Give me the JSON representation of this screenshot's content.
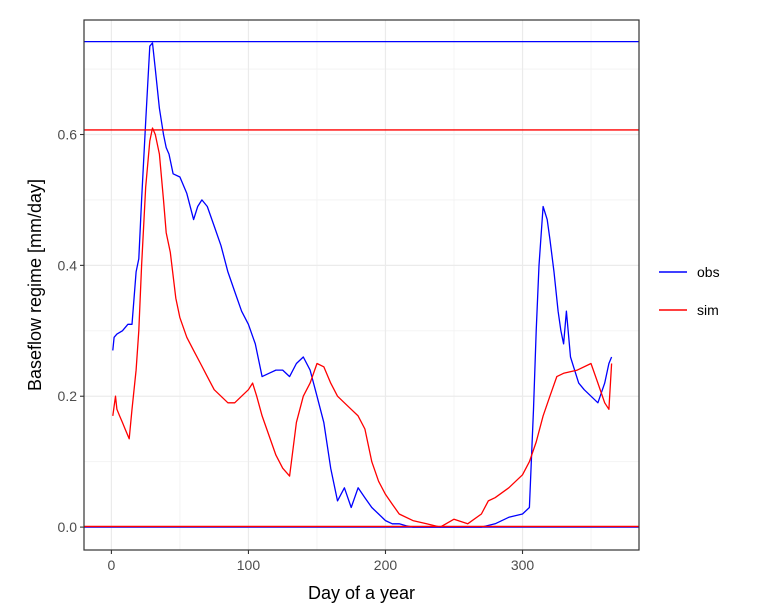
{
  "chart_data": {
    "type": "line",
    "title": "",
    "xlabel": "Day of a year",
    "ylabel": "Baseflow regime [mm/day]",
    "xlim": [
      -20,
      385
    ],
    "ylim": [
      -0.035,
      0.775
    ],
    "x_ticks": [
      0,
      100,
      200,
      300
    ],
    "y_ticks": [
      0.0,
      0.2,
      0.4,
      0.6
    ],
    "x_tick_labels": [
      "0",
      "100",
      "200",
      "300"
    ],
    "y_tick_labels": [
      "0.0",
      "0.2",
      "0.4",
      "0.6"
    ],
    "grid": true,
    "legend_position": "right",
    "series": [
      {
        "name": "obs",
        "color": "#0000ff",
        "x": [
          1,
          2,
          4,
          8,
          12,
          15,
          18,
          20,
          22,
          25,
          28,
          30,
          32,
          35,
          38,
          40,
          42,
          45,
          50,
          55,
          60,
          63,
          66,
          70,
          75,
          80,
          85,
          90,
          95,
          100,
          105,
          110,
          115,
          120,
          125,
          130,
          135,
          140,
          145,
          150,
          155,
          160,
          165,
          170,
          175,
          180,
          185,
          190,
          195,
          200,
          205,
          210,
          215,
          220,
          230,
          240,
          250,
          260,
          270,
          280,
          290,
          300,
          305,
          308,
          310,
          312,
          315,
          318,
          320,
          323,
          326,
          328,
          330,
          332,
          335,
          338,
          341,
          345,
          350,
          355,
          360,
          363,
          365
        ],
        "y": [
          0.27,
          0.29,
          0.295,
          0.3,
          0.31,
          0.31,
          0.39,
          0.41,
          0.5,
          0.62,
          0.735,
          0.74,
          0.7,
          0.64,
          0.6,
          0.58,
          0.57,
          0.54,
          0.535,
          0.51,
          0.47,
          0.49,
          0.5,
          0.49,
          0.46,
          0.43,
          0.39,
          0.36,
          0.33,
          0.31,
          0.28,
          0.23,
          0.235,
          0.24,
          0.24,
          0.23,
          0.25,
          0.26,
          0.24,
          0.2,
          0.16,
          0.09,
          0.04,
          0.06,
          0.03,
          0.06,
          0.045,
          0.03,
          0.02,
          0.01,
          0.005,
          0.005,
          0.002,
          0.0,
          0.0,
          0.0,
          0.0,
          0.0,
          0.0,
          0.005,
          0.015,
          0.02,
          0.03,
          0.18,
          0.3,
          0.4,
          0.49,
          0.47,
          0.44,
          0.39,
          0.33,
          0.3,
          0.28,
          0.33,
          0.26,
          0.24,
          0.22,
          0.21,
          0.2,
          0.19,
          0.22,
          0.25,
          0.26
        ]
      },
      {
        "name": "sim",
        "color": "#ff0000",
        "x": [
          1,
          3,
          4,
          6,
          8,
          10,
          13,
          15,
          18,
          20,
          22,
          25,
          28,
          30,
          32,
          35,
          38,
          40,
          43,
          47,
          50,
          55,
          60,
          65,
          70,
          75,
          80,
          85,
          90,
          95,
          100,
          103,
          106,
          110,
          115,
          120,
          125,
          130,
          135,
          140,
          145,
          150,
          155,
          160,
          165,
          170,
          175,
          180,
          185,
          190,
          195,
          200,
          205,
          210,
          220,
          230,
          240,
          250,
          260,
          270,
          275,
          280,
          290,
          300,
          305,
          310,
          315,
          320,
          325,
          330,
          340,
          350,
          355,
          360,
          363,
          365
        ],
        "y": [
          0.17,
          0.2,
          0.18,
          0.17,
          0.16,
          0.15,
          0.135,
          0.18,
          0.24,
          0.3,
          0.4,
          0.52,
          0.59,
          0.61,
          0.6,
          0.57,
          0.5,
          0.45,
          0.42,
          0.35,
          0.32,
          0.29,
          0.27,
          0.25,
          0.23,
          0.21,
          0.2,
          0.19,
          0.19,
          0.2,
          0.21,
          0.22,
          0.2,
          0.17,
          0.14,
          0.11,
          0.09,
          0.078,
          0.16,
          0.2,
          0.22,
          0.25,
          0.245,
          0.22,
          0.2,
          0.19,
          0.18,
          0.17,
          0.15,
          0.1,
          0.07,
          0.05,
          0.035,
          0.02,
          0.01,
          0.005,
          0.0,
          0.012,
          0.005,
          0.02,
          0.04,
          0.045,
          0.06,
          0.08,
          0.1,
          0.13,
          0.17,
          0.2,
          0.23,
          0.235,
          0.24,
          0.25,
          0.22,
          0.19,
          0.18,
          0.25
        ]
      }
    ],
    "hlines": [
      {
        "series": "obs",
        "color": "#0000ff",
        "values": [
          0.742,
          0.0
        ]
      },
      {
        "series": "sim",
        "color": "#ff0000",
        "values": [
          0.607,
          0.001
        ]
      }
    ]
  }
}
